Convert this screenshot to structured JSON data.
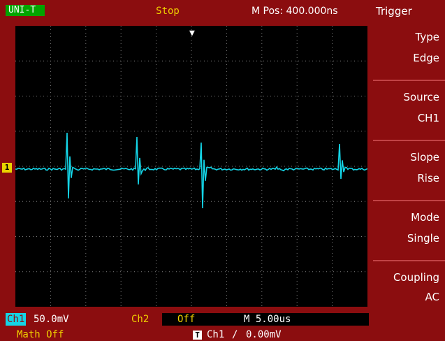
{
  "top_bar": {
    "brand": "UNI-T",
    "status": "Stop",
    "m_pos": "M Pos: 400.000ns",
    "menu_title": "Trigger"
  },
  "menu": [
    {
      "label": "Type",
      "value": "Edge"
    },
    {
      "label": "Source",
      "value": "CH1"
    },
    {
      "label": "Slope",
      "value": "Rise"
    },
    {
      "label": "Mode",
      "value": "Single"
    },
    {
      "label": "Coupling",
      "value": "AC"
    }
  ],
  "bottom_bar": {
    "ch1_tag": "Ch1",
    "ch1_scale": "50.0mV",
    "ch2_tag": "Ch2",
    "ch2_state": "Off",
    "timebase": "M 5.00us",
    "math": "Math Off",
    "trigger_icon": "T",
    "trigger_source": "Ch1",
    "trigger_slope": "/",
    "trigger_level": "0.00mV"
  },
  "channel_marker": "1",
  "colors": {
    "frame": "#8b0d0f",
    "trace": "#14d4e6",
    "grid": "#7f7f7f",
    "brand_bg": "#00a400",
    "highlight": "#f0d000"
  },
  "icons": {
    "trigger_position": "down-arrow-icon",
    "channel_marker": "channel-1-marker-icon"
  }
}
